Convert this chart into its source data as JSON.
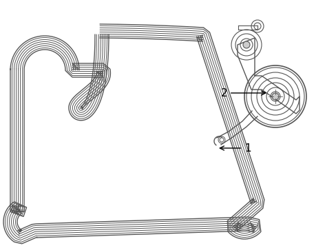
{
  "background_color": "#ffffff",
  "line_color": "#555555",
  "label1": "1",
  "label2": "2",
  "fig_width": 4.89,
  "fig_height": 3.6,
  "dpi": 100
}
